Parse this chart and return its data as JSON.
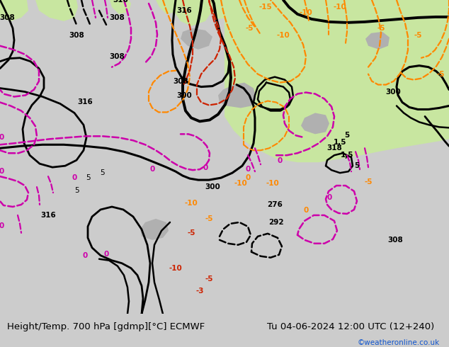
{
  "title_left": "Height/Temp. 700 hPa [gdmp][°C] ECMWF",
  "title_right": "Tu 04-06-2024 12:00 UTC (12+240)",
  "credit": "©weatheronline.co.uk",
  "fig_width": 6.34,
  "fig_height": 4.9,
  "dpi": 100,
  "bg_land_green": "#c8e6a0",
  "bg_land_light": "#e8e8e8",
  "bg_sea": "#e0e0e0",
  "gray_terrain": "#b0b0b0",
  "bottom_bar": "#cccccc",
  "credit_color": "#1155cc",
  "title_fontsize": 9.5,
  "credit_fontsize": 7.5
}
